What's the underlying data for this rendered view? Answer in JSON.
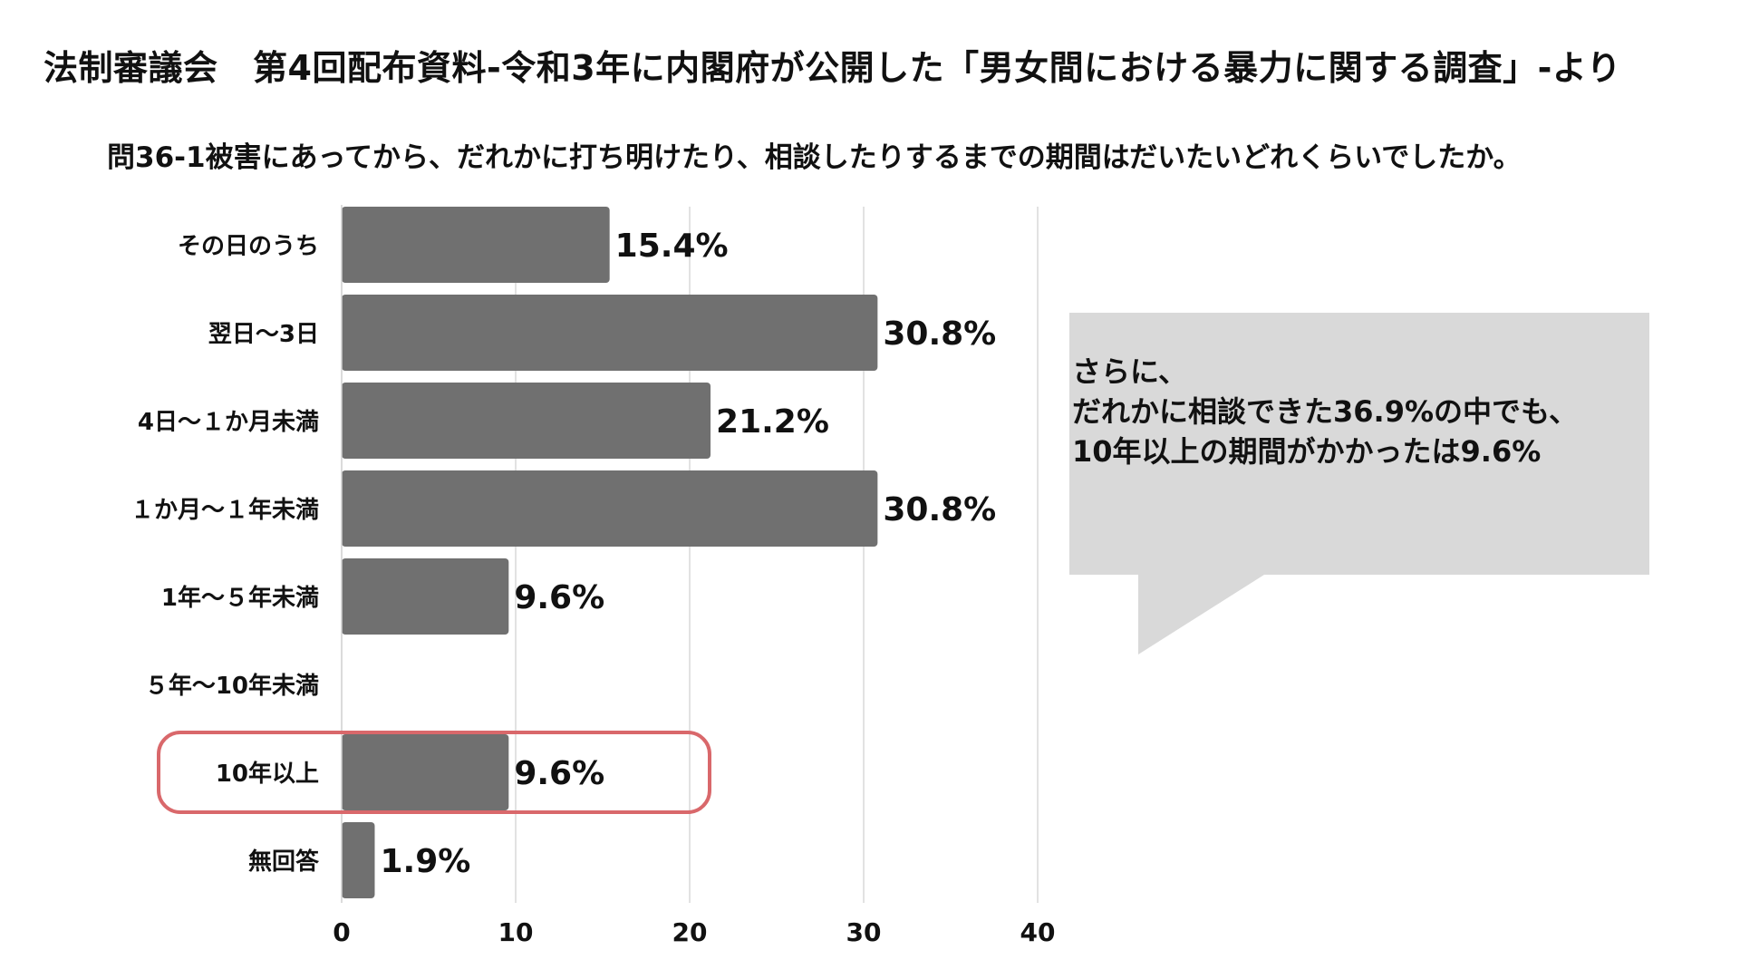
{
  "chart_data": {
    "type": "bar",
    "orientation": "horizontal",
    "title": "法制審議会　第4回配布資料-令和3年に内閣府が公開した「男女間における暴力に関する調査」-より",
    "subtitle": "問36-1被害にあってから、だれかに打ち明けたり、相談したりするまでの期間はだいたいどれくらいでしたか。",
    "categories": [
      "その日のうち",
      "翌日～3日",
      "4日～１か月未満",
      "１か月～１年未満",
      "1年～５年未満",
      "５年～10年未満",
      "10年以上",
      "無回答"
    ],
    "values": [
      15.4,
      30.8,
      21.2,
      30.8,
      9.6,
      null,
      9.6,
      1.9
    ],
    "data_labels": [
      "15.4%",
      "30.8%",
      "21.2%",
      "30.8%",
      "9.6%",
      "",
      "9.6%",
      "1.9%"
    ],
    "xlim": [
      0,
      40
    ],
    "xticks": [
      "0",
      "10",
      "20",
      "30",
      "40"
    ],
    "grid": true,
    "highlighted_category": "10年以上",
    "colors": {
      "bar": "#707070",
      "grid": "#d9d9d9",
      "highlight": "#d9686b",
      "callout_bg": "#d9d9d9"
    }
  },
  "callout": {
    "lines": [
      "さらに、",
      "だれかに相談できた36.9%の中でも、",
      "10年以上の期間がかかったは9.6%"
    ]
  }
}
